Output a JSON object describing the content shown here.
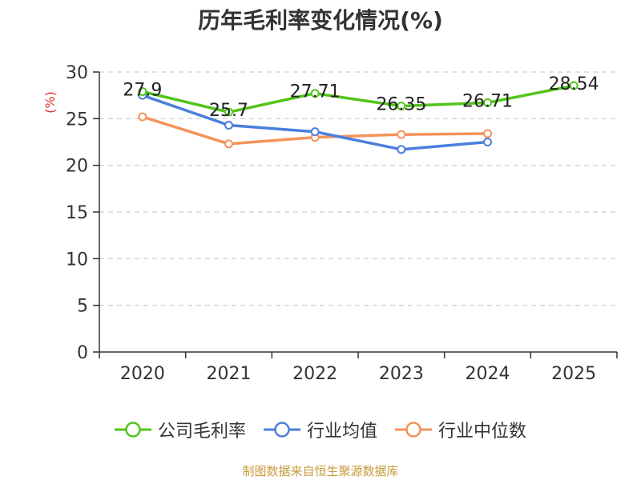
{
  "chart_data": {
    "type": "line",
    "title": "历年毛利率变化情况(%)",
    "ylabel": "(%)",
    "categories": [
      "2020",
      "2021",
      "2022",
      "2023",
      "2024",
      "2025"
    ],
    "ylim": [
      0,
      30
    ],
    "yticks": [
      0,
      5,
      10,
      15,
      20,
      25,
      30
    ],
    "grid": true,
    "legend_position": "bottom",
    "series": [
      {
        "name": "公司毛利率",
        "color": "#52c41a",
        "values": [
          27.9,
          25.7,
          27.71,
          26.35,
          26.71,
          28.54
        ],
        "labels": [
          "27.9",
          "25.7",
          "27.71",
          "26.35",
          "26.71",
          "28.54"
        ]
      },
      {
        "name": "行业均值",
        "color": "#4a7fdc",
        "values": [
          27.5,
          24.3,
          23.6,
          21.7,
          22.5,
          null
        ]
      },
      {
        "name": "行业中位数",
        "color": "#f5935a",
        "values": [
          25.2,
          22.3,
          23.0,
          23.3,
          23.4,
          null
        ]
      }
    ]
  },
  "source_note": "制图数据来自恒生聚源数据库"
}
